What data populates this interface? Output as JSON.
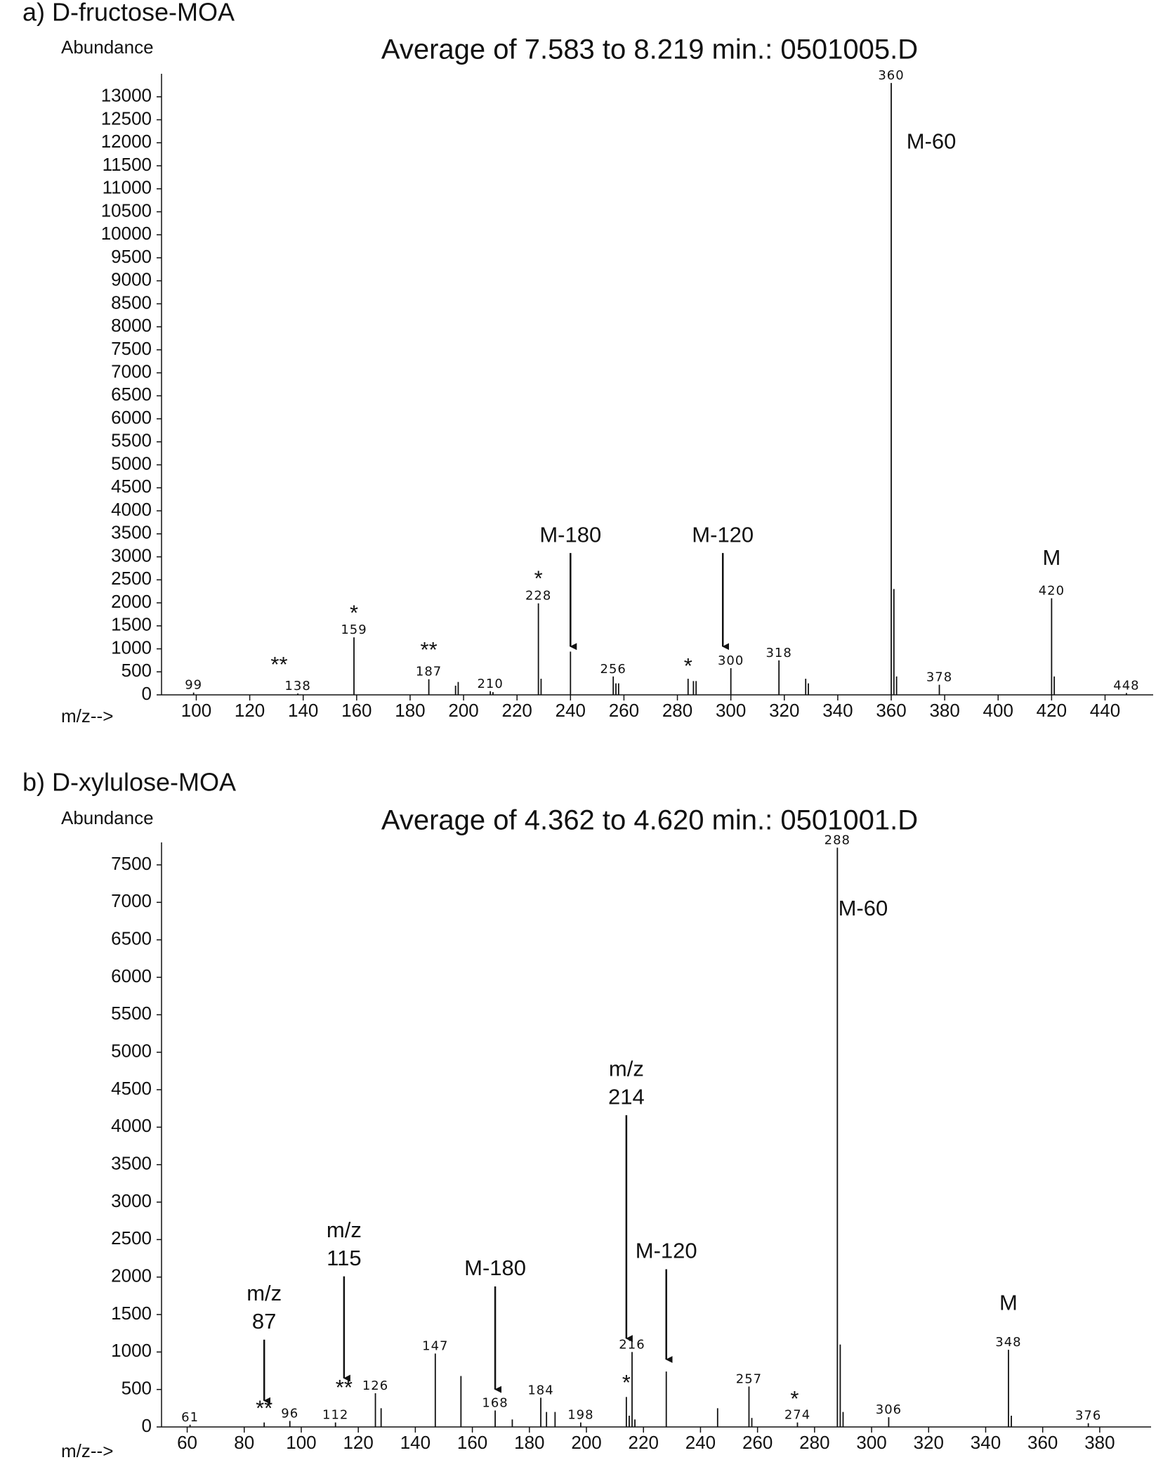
{
  "chart_data": [
    {
      "type": "spectrum",
      "panel_label": "a) D-fructose-MOA",
      "title": "Average of 7.583 to 8.219 min.: 0501005.D",
      "y_label": "Abundance",
      "x_label": "m/z-->",
      "xlim": [
        87,
        458
      ],
      "ylim": [
        0,
        13500
      ],
      "xticks": [
        100,
        120,
        140,
        160,
        180,
        200,
        220,
        240,
        260,
        280,
        300,
        320,
        340,
        360,
        380,
        400,
        420,
        440
      ],
      "yticks": [
        0,
        500,
        1000,
        1500,
        2000,
        2500,
        3000,
        3500,
        4000,
        4500,
        5000,
        5500,
        6000,
        6500,
        7000,
        7500,
        8000,
        8500,
        9000,
        9500,
        10000,
        10500,
        11000,
        11500,
        12000,
        12500,
        13000
      ],
      "color": "#111111",
      "x": [
        99,
        138,
        159,
        187,
        197,
        198,
        210,
        211,
        228,
        229,
        240,
        256,
        257,
        258,
        284,
        286,
        287,
        300,
        318,
        328,
        329,
        360,
        361,
        362,
        378,
        420,
        421,
        448
      ],
      "values": [
        50,
        30,
        1250,
        340,
        200,
        280,
        80,
        60,
        1990,
        350,
        940,
        400,
        250,
        250,
        350,
        300,
        300,
        580,
        750,
        350,
        250,
        13300,
        2300,
        400,
        220,
        2100,
        400,
        40
      ],
      "peak_labels": [
        99,
        138,
        159,
        187,
        210,
        228,
        256,
        300,
        318,
        360,
        378,
        420,
        448
      ],
      "annotations": [
        {
          "lines": [
            "M-60"
          ],
          "x": 375,
          "y": 12000
        },
        {
          "lines": [
            "M-180"
          ],
          "x": 240,
          "y": 3450,
          "arrow_to": 1050
        },
        {
          "lines": [
            "M-120"
          ],
          "x": 297,
          "y": 3450,
          "arrow_to": 1050
        },
        {
          "lines": [
            "M"
          ],
          "x": 420,
          "y": 2950
        },
        {
          "lines": [
            "*"
          ],
          "x": 159,
          "y": 1750
        },
        {
          "lines": [
            "**"
          ],
          "x": 131,
          "y": 630
        },
        {
          "lines": [
            "**"
          ],
          "x": 187,
          "y": 950
        },
        {
          "lines": [
            "*"
          ],
          "x": 228,
          "y": 2500
        },
        {
          "lines": [
            "*"
          ],
          "x": 284,
          "y": 600
        }
      ]
    },
    {
      "type": "spectrum",
      "panel_label": "b) D-xylulose-MOA",
      "title": "Average of 4.362 to 4.620 min.: 0501001.D",
      "y_label": "Abundance",
      "x_label": "m/z-->",
      "xlim": [
        51,
        398
      ],
      "ylim": [
        0,
        7800
      ],
      "xticks": [
        60,
        80,
        100,
        120,
        140,
        160,
        180,
        200,
        220,
        240,
        260,
        280,
        300,
        320,
        340,
        360,
        380
      ],
      "yticks": [
        0,
        500,
        1000,
        1500,
        2000,
        2500,
        3000,
        3500,
        4000,
        4500,
        5000,
        5500,
        6000,
        6500,
        7000,
        7500
      ],
      "color": "#111111",
      "x": [
        61,
        87,
        96,
        112,
        126,
        128,
        147,
        156,
        168,
        174,
        184,
        186,
        189,
        198,
        214,
        215,
        216,
        217,
        228,
        246,
        257,
        258,
        274,
        288,
        289,
        290,
        306,
        348,
        349,
        376
      ],
      "values": [
        30,
        60,
        80,
        60,
        450,
        250,
        980,
        680,
        220,
        100,
        390,
        200,
        200,
        60,
        400,
        150,
        1000,
        100,
        740,
        250,
        540,
        120,
        60,
        7730,
        1100,
        200,
        130,
        1030,
        150,
        50
      ],
      "peak_labels": [
        61,
        96,
        112,
        126,
        147,
        168,
        184,
        198,
        216,
        257,
        274,
        288,
        306,
        348,
        376
      ],
      "annotations": [
        {
          "lines": [
            "M-60"
          ],
          "x": 297,
          "y": 6900
        },
        {
          "lines": [
            "M"
          ],
          "x": 348,
          "y": 1640
        },
        {
          "lines": [
            "M-180"
          ],
          "x": 168,
          "y": 2100,
          "arrow_to": 500
        },
        {
          "lines": [
            "m/z",
            "87"
          ],
          "x": 87,
          "y": 1765,
          "arrow_to": 350
        },
        {
          "lines": [
            "m/z",
            "115"
          ],
          "x": 115,
          "y": 2610,
          "arrow_to": 650
        },
        {
          "lines": [
            "m/z",
            "214"
          ],
          "x": 214,
          "y": 4760,
          "arrow_to": 1180
        },
        {
          "lines": [
            "M-120"
          ],
          "x": 228,
          "y": 2330,
          "arrow_to": 900
        },
        {
          "lines": [
            "**"
          ],
          "x": 87,
          "y": 230
        },
        {
          "lines": [
            "**"
          ],
          "x": 115,
          "y": 510
        },
        {
          "lines": [
            "*"
          ],
          "x": 214,
          "y": 575
        },
        {
          "lines": [
            "*"
          ],
          "x": 273,
          "y": 360
        }
      ]
    }
  ]
}
